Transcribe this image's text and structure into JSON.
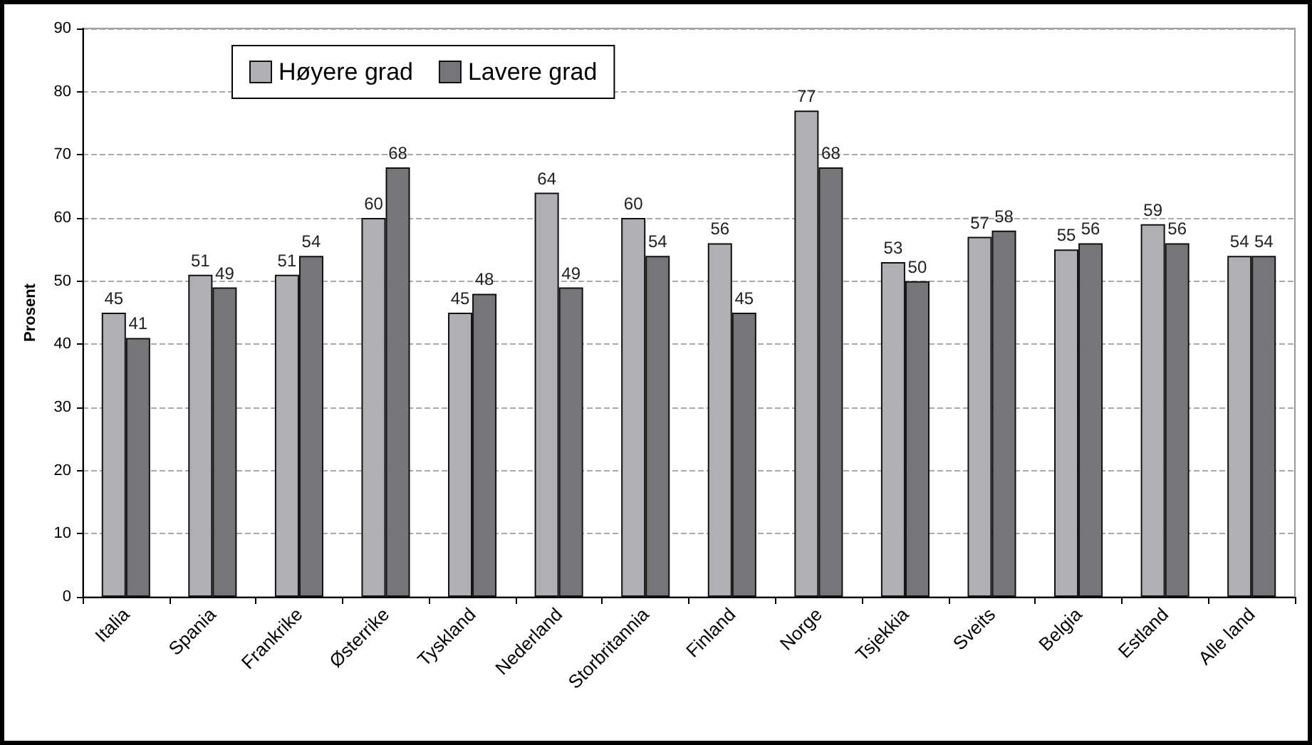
{
  "chart_data": {
    "type": "bar",
    "ylabel": "Prosent",
    "categories": [
      "Italia",
      "Spania",
      "Frankrike",
      "Østerrike",
      "Tyskland",
      "Nederland",
      "Storbritannia",
      "Finland",
      "Norge",
      "Tsjekkia",
      "Sveits",
      "Belgia",
      "Estland",
      "Alle land"
    ],
    "series": [
      {
        "name": "Høyere grad",
        "color": "#b0b0b4",
        "values": [
          45,
          51,
          51,
          60,
          45,
          64,
          60,
          56,
          77,
          53,
          57,
          55,
          59,
          54
        ]
      },
      {
        "name": "Lavere grad",
        "color": "#76767a",
        "values": [
          41,
          49,
          54,
          68,
          48,
          49,
          54,
          45,
          68,
          50,
          58,
          56,
          56,
          54
        ]
      }
    ],
    "ylim": [
      0,
      90
    ],
    "yticks": [
      0,
      10,
      20,
      30,
      40,
      50,
      60,
      70,
      80,
      90
    ],
    "grid": "y",
    "legend": "top left",
    "data_labels": true
  }
}
